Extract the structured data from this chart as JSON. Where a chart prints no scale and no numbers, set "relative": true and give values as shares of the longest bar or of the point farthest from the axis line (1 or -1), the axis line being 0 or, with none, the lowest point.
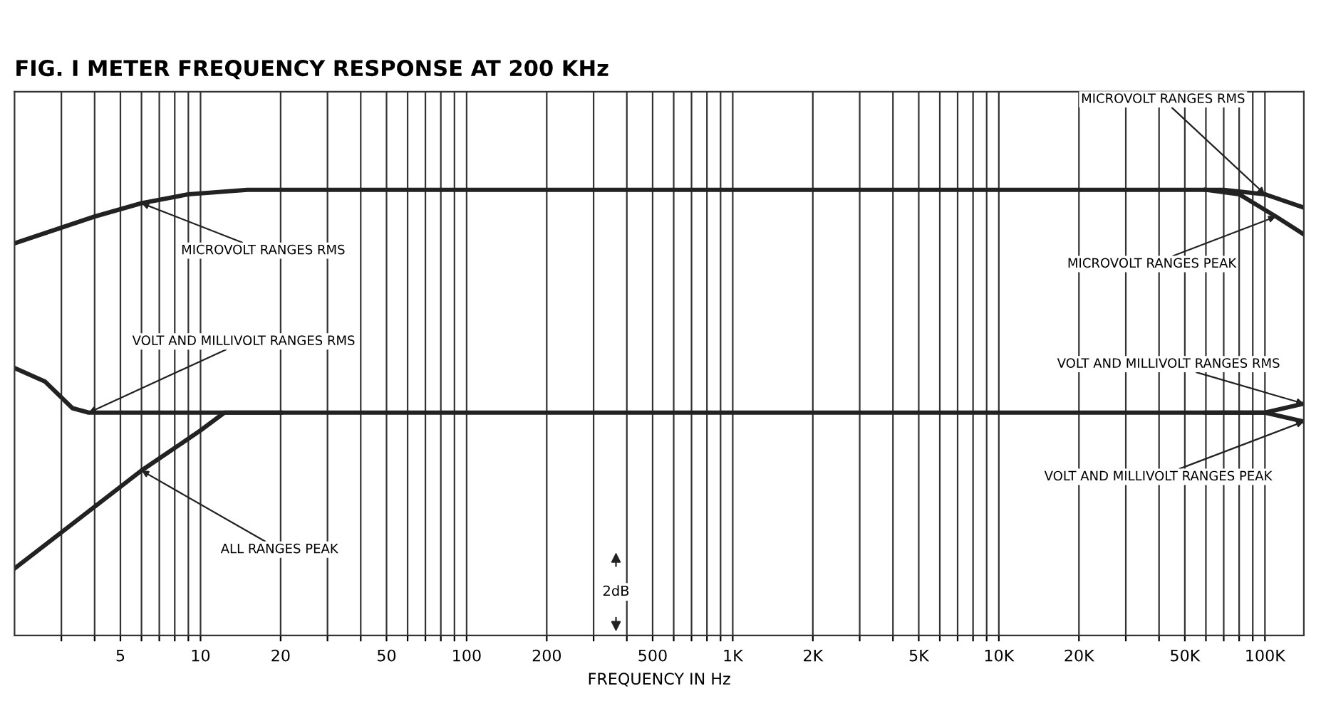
{
  "chart_data": {
    "type": "line",
    "title": "FIG. I METER FREQUENCY RESPONSE AT 200 KHz",
    "xlabel": "FREQUENCY IN Hz",
    "relative": true,
    "log": "x",
    "grid": "x",
    "marker": "none",
    "line_style": "solid",
    "xlim": [
      2,
      140000
    ],
    "xticks": [
      {
        "value": 3,
        "label": null
      },
      {
        "value": 4,
        "label": null
      },
      5,
      {
        "value": 6,
        "label": null
      },
      {
        "value": 7,
        "label": null
      },
      {
        "value": 8,
        "label": null
      },
      {
        "value": 9,
        "label": null
      },
      10,
      20,
      {
        "value": 30,
        "label": null
      },
      {
        "value": 40,
        "label": null
      },
      50,
      {
        "value": 60,
        "label": null
      },
      {
        "value": 70,
        "label": null
      },
      {
        "value": 80,
        "label": null
      },
      {
        "value": 90,
        "label": null
      },
      100,
      200,
      {
        "value": 300,
        "label": null
      },
      {
        "value": 400,
        "label": null
      },
      500,
      {
        "value": 600,
        "label": null
      },
      {
        "value": 700,
        "label": null
      },
      {
        "value": 800,
        "label": null
      },
      {
        "value": 900,
        "label": null
      },
      {
        "value": 1000,
        "label": "1K"
      },
      {
        "value": 2000,
        "label": "2K"
      },
      {
        "value": 3000,
        "label": null
      },
      {
        "value": 4000,
        "label": null
      },
      {
        "value": 5000,
        "label": "5K"
      },
      {
        "value": 6000,
        "label": null
      },
      {
        "value": 7000,
        "label": null
      },
      {
        "value": 8000,
        "label": null
      },
      {
        "value": 9000,
        "label": null
      },
      {
        "value": 10000,
        "label": "10K"
      },
      {
        "value": 20000,
        "label": "20K"
      },
      {
        "value": 30000,
        "label": null
      },
      {
        "value": 40000,
        "label": null
      },
      {
        "value": 50000,
        "label": "50K"
      },
      {
        "value": 60000,
        "label": null
      },
      {
        "value": 70000,
        "label": null
      },
      {
        "value": 80000,
        "label": null
      },
      {
        "value": 90000,
        "label": null
      },
      {
        "value": 100000,
        "label": "100K"
      }
    ],
    "series": [
      {
        "color": "#222222",
        "x": [
          2,
          4,
          6,
          9,
          15,
          70000,
          100000,
          140000
        ],
        "values": [
          0.88,
          0.94,
          0.97,
          0.99,
          1.0,
          1.0,
          0.99,
          0.96
        ]
      },
      {
        "color": "#222222",
        "x": [
          60000,
          80000,
          110000,
          140000
        ],
        "values": [
          1.0,
          0.99,
          0.94,
          0.9
        ]
      },
      {
        "color": "#222222",
        "x": [
          2,
          2.6,
          3.3,
          3.8,
          100000,
          140000
        ],
        "values": [
          0.6,
          0.57,
          0.51,
          0.5,
          0.5,
          0.52
        ]
      },
      {
        "color": "#222222",
        "x": [
          60000,
          100000,
          140000
        ],
        "values": [
          0.5,
          0.5,
          0.48
        ]
      },
      {
        "color": "#222222",
        "x": [
          2,
          6,
          10,
          12.3,
          20
        ],
        "values": [
          0.15,
          0.37,
          0.46,
          0.5,
          0.5
        ]
      }
    ],
    "annotations": [
      {
        "text": "MICROVOLT RANGES RMS",
        "x": 6,
        "y": 0.97
      },
      {
        "text": "VOLT AND MILLIVOLT RANGES RMS",
        "x": 3.8,
        "y": 0.5
      },
      {
        "text": "ALL RANGES PEAK",
        "x": 6,
        "y": 0.37
      },
      {
        "text": "MICROVOLT RANGES RMS",
        "x": 100000,
        "y": 0.99
      },
      {
        "text": "MICROVOLT RANGES PEAK",
        "x": 110000,
        "y": 0.94
      },
      {
        "text": "VOLT AND MILLIVOLT RANGES RMS",
        "x": 140000,
        "y": 0.52
      },
      {
        "text": "VOLT AND MILLIVOLT RANGES PEAK",
        "x": 140000,
        "y": 0.48
      },
      "2dB"
    ]
  }
}
